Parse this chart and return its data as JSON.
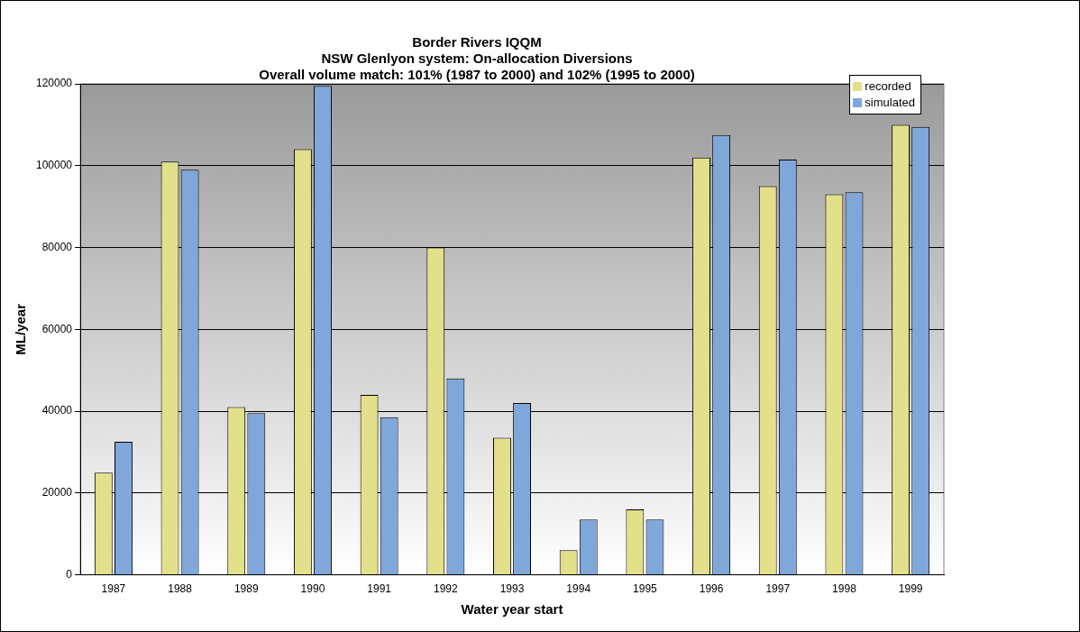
{
  "chart_data": {
    "type": "bar",
    "title": [
      "Border Rivers IQQM",
      "NSW Glenlyon system: On-allocation Diversions",
      "Overall volume match: 101% (1987 to 2000) and 102% (1995 to 2000)"
    ],
    "xlabel": "Water year start",
    "ylabel": "ML/year",
    "categories": [
      "1987",
      "1988",
      "1989",
      "1990",
      "1991",
      "1992",
      "1993",
      "1994",
      "1995",
      "1996",
      "1997",
      "1998",
      "1999"
    ],
    "series": [
      {
        "name": "recorded",
        "color": "#e2e08a",
        "values": [
          25000,
          101000,
          41000,
          104000,
          44000,
          80000,
          33500,
          6000,
          16000,
          102000,
          95000,
          93000,
          110000
        ]
      },
      {
        "name": "simulated",
        "color": "#7fa7d9",
        "values": [
          32500,
          99000,
          39500,
          119500,
          38500,
          48000,
          42000,
          13500,
          13500,
          107500,
          101500,
          93500,
          109500
        ]
      }
    ],
    "ylim": [
      0,
      120000
    ],
    "yticks": [
      0,
      20000,
      40000,
      60000,
      80000,
      100000,
      120000
    ],
    "grid": "y",
    "legend": "top right"
  }
}
